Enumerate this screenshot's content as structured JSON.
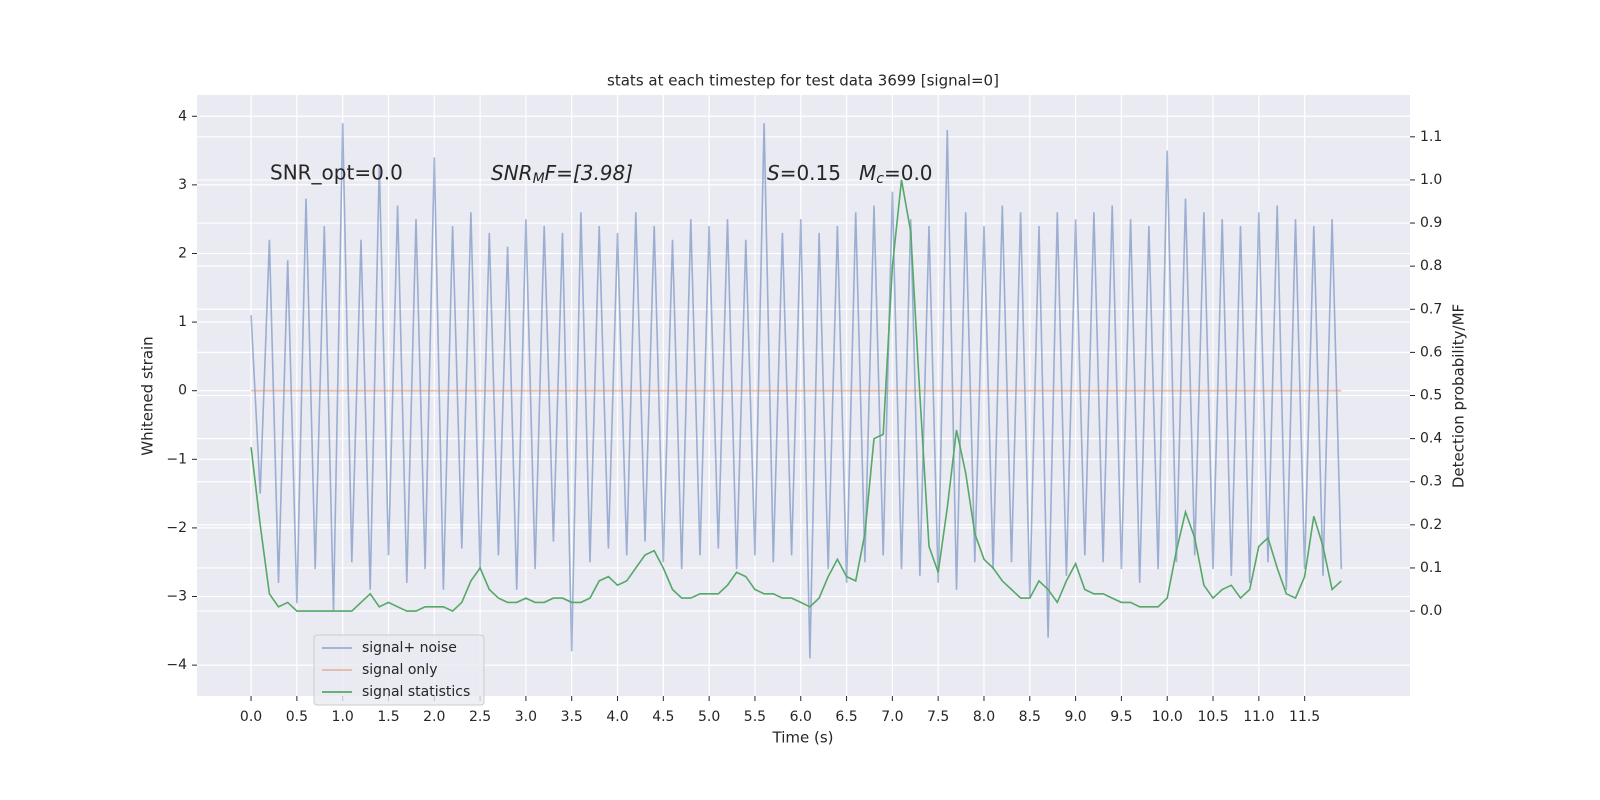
{
  "chart_data": {
    "type": "line",
    "title": "stats at each timestep for test data 3699 [signal=0]",
    "x_label": "Time (s)",
    "y_label": "Whitened strain",
    "y2_label": "Detection probability/MF",
    "annotations": [
      [
        "SNR_opt=0.0"
      ],
      [
        "SNR",
        "M",
        "F=[3.98]"
      ],
      [
        "S",
        "=0.15"
      ],
      [
        "M",
        "c",
        "=0.0"
      ]
    ],
    "xlim": [
      -0.59,
      12.65
    ],
    "ylim": [
      -4.45,
      4.31
    ],
    "y2lim": [
      -0.197,
      1.197
    ],
    "xticks": [
      {
        "value": 0,
        "label": "0.0"
      },
      {
        "value": 0.5,
        "label": "0.5"
      },
      {
        "value": 1,
        "label": "1.0"
      },
      {
        "value": 1.5,
        "label": "1.5"
      },
      {
        "value": 2,
        "label": "2.0"
      },
      {
        "value": 2.5,
        "label": "2.5"
      },
      {
        "value": 3,
        "label": "3.0"
      },
      {
        "value": 3.5,
        "label": "3.5"
      },
      {
        "value": 4,
        "label": "4.0"
      },
      {
        "value": 4.5,
        "label": "4.5"
      },
      {
        "value": 5,
        "label": "5.0"
      },
      {
        "value": 5.5,
        "label": "5.5"
      },
      {
        "value": 6,
        "label": "6.0"
      },
      {
        "value": 6.5,
        "label": "6.5"
      },
      {
        "value": 7,
        "label": "7.0"
      },
      {
        "value": 7.5,
        "label": "7.5"
      },
      {
        "value": 8,
        "label": "8.0"
      },
      {
        "value": 8.5,
        "label": "8.5"
      },
      {
        "value": 9,
        "label": "9.0"
      },
      {
        "value": 9.5,
        "label": "9.5"
      },
      {
        "value": 10,
        "label": "10.0"
      },
      {
        "value": 10.5,
        "label": "10.5"
      },
      {
        "value": 11,
        "label": "11.0"
      },
      {
        "value": 11.5,
        "label": "11.5"
      }
    ],
    "yticks": [
      {
        "value": -4,
        "label": "−4"
      },
      {
        "value": -3,
        "label": "−3"
      },
      {
        "value": -2,
        "label": "−2"
      },
      {
        "value": -1,
        "label": "−1"
      },
      0,
      1,
      2,
      3,
      4
    ],
    "y2ticks": [
      {
        "value": 0,
        "label": "0.0"
      },
      {
        "value": 0.1,
        "label": "0.1"
      },
      {
        "value": 0.2,
        "label": "0.2"
      },
      {
        "value": 0.3,
        "label": "0.3"
      },
      {
        "value": 0.4,
        "label": "0.4"
      },
      {
        "value": 0.5,
        "label": "0.5"
      },
      {
        "value": 0.6,
        "label": "0.6"
      },
      {
        "value": 0.7,
        "label": "0.7"
      },
      {
        "value": 0.8,
        "label": "0.8"
      },
      {
        "value": 0.9,
        "label": "0.9"
      },
      {
        "value": 1,
        "label": "1.0"
      },
      {
        "value": 1.1,
        "label": "1.1"
      }
    ],
    "grid": true,
    "legend": "lower left",
    "x": [
      0,
      0.1,
      0.2,
      0.3,
      0.4,
      0.5,
      0.6,
      0.7,
      0.8,
      0.9,
      1,
      1.1,
      1.2,
      1.3,
      1.4,
      1.5,
      1.6,
      1.7,
      1.8,
      1.9,
      2,
      2.1,
      2.2,
      2.3,
      2.4,
      2.5,
      2.6,
      2.7,
      2.8,
      2.9,
      3,
      3.1,
      3.2,
      3.3,
      3.4,
      3.5,
      3.6,
      3.7,
      3.8,
      3.9,
      4,
      4.1,
      4.2,
      4.3,
      4.4,
      4.5,
      4.6,
      4.7,
      4.8,
      4.9,
      5,
      5.1,
      5.2,
      5.3,
      5.4,
      5.5,
      5.6,
      5.7,
      5.8,
      5.9,
      6,
      6.1,
      6.2,
      6.3,
      6.4,
      6.5,
      6.6,
      6.7,
      6.8,
      6.9,
      7,
      7.1,
      7.2,
      7.3,
      7.4,
      7.5,
      7.6,
      7.7,
      7.8,
      7.9,
      8,
      8.1,
      8.2,
      8.3,
      8.4,
      8.5,
      8.6,
      8.7,
      8.8,
      8.9,
      9,
      9.1,
      9.2,
      9.3,
      9.4,
      9.5,
      9.6,
      9.7,
      9.8,
      9.9,
      10,
      10.1,
      10.2,
      10.3,
      10.4,
      10.5,
      10.6,
      10.7,
      10.8,
      10.9,
      11,
      11.1,
      11.2,
      11.3,
      11.4,
      11.5,
      11.6,
      11.7,
      11.8,
      11.9
    ],
    "series": [
      {
        "name": "signal+ noise",
        "color": "#4c72b0",
        "opacity": 0.5,
        "values": [
          1.1,
          -1.5,
          2.2,
          -2.8,
          1.9,
          -3.1,
          2.8,
          -2.6,
          2.4,
          -3.2,
          3.9,
          -2.5,
          2.2,
          -2.9,
          3.3,
          -2.4,
          2.7,
          -2.8,
          2.5,
          -2.6,
          3.4,
          -2.9,
          2.4,
          -2.3,
          2.6,
          -2.6,
          2.3,
          -2.4,
          2.1,
          -2.9,
          2.5,
          -2.6,
          2.4,
          -2.2,
          2.3,
          -3.8,
          2.6,
          -2.5,
          2.4,
          -2.3,
          2.3,
          -2.4,
          2.6,
          -2.2,
          2.4,
          -2.5,
          2.2,
          -2.6,
          2.5,
          -2.4,
          2.4,
          -2.3,
          2.5,
          -2.6,
          2.2,
          -2.4,
          3.9,
          -2.5,
          2.3,
          -2.4,
          2.5,
          -3.9,
          2.3,
          -2.6,
          2.4,
          -2.8,
          2.6,
          -2.5,
          2.7,
          -2.4,
          2.9,
          -2.6,
          2.5,
          -2.7,
          2.4,
          -2.8,
          3.8,
          -2.9,
          2.6,
          -2.5,
          2.4,
          -2.6,
          2.7,
          -2.5,
          2.6,
          -3.0,
          2.4,
          -3.6,
          2.6,
          -2.7,
          2.5,
          -2.4,
          2.6,
          -2.5,
          2.7,
          -2.6,
          2.5,
          -2.8,
          2.4,
          -2.6,
          3.5,
          -2.5,
          2.8,
          -2.4,
          2.6,
          -2.6,
          2.5,
          -2.7,
          2.4,
          -2.8,
          2.6,
          -2.5,
          2.7,
          -2.9,
          2.5,
          -2.6,
          2.4,
          -2.7,
          2.5,
          -2.6
        ]
      },
      {
        "name": "signal only",
        "color": "#dd8452",
        "opacity": 0.5,
        "values": [
          0,
          0,
          0,
          0,
          0,
          0,
          0,
          0,
          0,
          0,
          0,
          0,
          0,
          0,
          0,
          0,
          0,
          0,
          0,
          0,
          0,
          0,
          0,
          0,
          0,
          0,
          0,
          0,
          0,
          0,
          0,
          0,
          0,
          0,
          0,
          0,
          0,
          0,
          0,
          0,
          0,
          0,
          0,
          0,
          0,
          0,
          0,
          0,
          0,
          0,
          0,
          0,
          0,
          0,
          0,
          0,
          0,
          0,
          0,
          0,
          0,
          0,
          0,
          0,
          0,
          0,
          0,
          0,
          0,
          0,
          0,
          0,
          0,
          0,
          0,
          0,
          0,
          0,
          0,
          0,
          0,
          0,
          0,
          0,
          0,
          0,
          0,
          0,
          0,
          0,
          0,
          0,
          0,
          0,
          0,
          0,
          0,
          0,
          0,
          0,
          0,
          0,
          0,
          0,
          0,
          0,
          0,
          0,
          0,
          0,
          0,
          0,
          0,
          0,
          0,
          0,
          0,
          0,
          0,
          0
        ]
      },
      {
        "name": "signal statistics",
        "color": "#55a868",
        "opacity": 1,
        "axis": "y2",
        "values": [
          0.38,
          0.2,
          0.04,
          0.01,
          0.02,
          0.0,
          0.0,
          0.0,
          0.0,
          0.0,
          0.0,
          0.0,
          0.02,
          0.04,
          0.01,
          0.02,
          0.01,
          0.0,
          0.0,
          0.01,
          0.01,
          0.01,
          0.0,
          0.02,
          0.07,
          0.1,
          0.05,
          0.03,
          0.02,
          0.02,
          0.03,
          0.02,
          0.02,
          0.03,
          0.03,
          0.02,
          0.02,
          0.03,
          0.07,
          0.08,
          0.06,
          0.07,
          0.1,
          0.13,
          0.14,
          0.1,
          0.05,
          0.03,
          0.03,
          0.04,
          0.04,
          0.04,
          0.06,
          0.09,
          0.08,
          0.05,
          0.04,
          0.04,
          0.03,
          0.03,
          0.02,
          0.01,
          0.03,
          0.08,
          0.12,
          0.08,
          0.07,
          0.18,
          0.4,
          0.41,
          0.8,
          1.0,
          0.88,
          0.5,
          0.15,
          0.09,
          0.24,
          0.42,
          0.32,
          0.18,
          0.12,
          0.1,
          0.07,
          0.05,
          0.03,
          0.03,
          0.07,
          0.05,
          0.02,
          0.07,
          0.11,
          0.05,
          0.04,
          0.04,
          0.03,
          0.02,
          0.02,
          0.01,
          0.01,
          0.01,
          0.03,
          0.14,
          0.23,
          0.17,
          0.06,
          0.03,
          0.05,
          0.06,
          0.03,
          0.05,
          0.15,
          0.17,
          0.1,
          0.04,
          0.03,
          0.08,
          0.22,
          0.15,
          0.05,
          0.07
        ]
      }
    ]
  }
}
